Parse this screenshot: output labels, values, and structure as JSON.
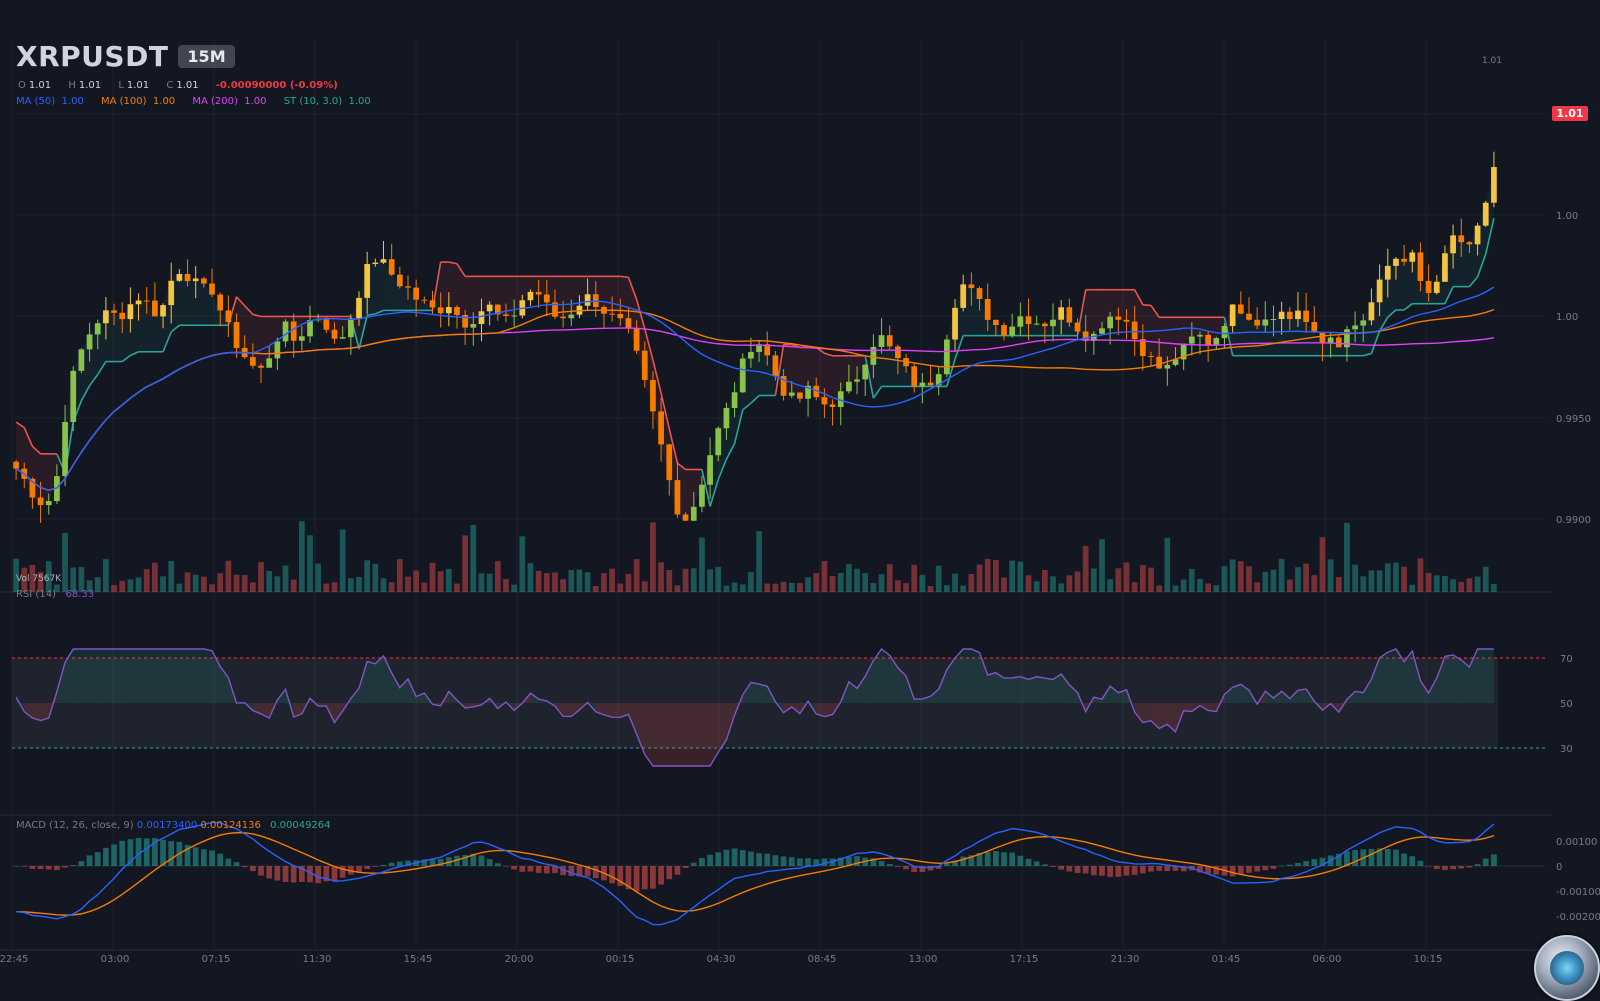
{
  "header": {
    "symbol": "XRPUSDT",
    "timeframe": "15M",
    "ohlc": {
      "o_label": "O",
      "o": "1.01",
      "h_label": "H",
      "h": "1.01",
      "l_label": "L",
      "l": "1.01",
      "c_label": "C",
      "c": "1.01"
    },
    "change": "-0.00090000 (-0.09%)",
    "ma50": {
      "label": "MA (50)",
      "value": "1.00",
      "color": "#2962ff"
    },
    "ma100": {
      "label": "MA (100)",
      "value": "1.00",
      "color": "#f57c00"
    },
    "ma200": {
      "label": "MA (200)",
      "value": "1.00",
      "color": "#e040fb"
    },
    "st": {
      "label": "ST (10, 3.0)",
      "value": "1.00",
      "color": "#26a69a"
    }
  },
  "price_panel": {
    "last_price_label": "1.01",
    "high_marker": "1.01",
    "volume_label": "Vol 7567K"
  },
  "rsi_panel": {
    "label": "RSI (14)",
    "value": "68.33",
    "color": "#7e57c2",
    "upper": 70,
    "lower": 30,
    "mid": 50
  },
  "macd_panel": {
    "label": "MACD (12, 26, close, 9)",
    "macd_value": "0.00173400",
    "signal_value": "0.00124136",
    "hist_value": "0.00049264"
  },
  "colors": {
    "bg": "#131722",
    "up_strong": "#f5c542",
    "down_strong": "#f57c00",
    "up_green": "#8bc34a",
    "ma50": "#2962ff",
    "ma100": "#f57c00",
    "ma200": "#e040fb",
    "st_up": "#26a69a",
    "st_down": "#ef5350",
    "rsi": "#7e57c2",
    "macd": "#2962ff",
    "signal": "#f57c00",
    "hist_up": "#26a69a",
    "hist_down": "#ef5350"
  },
  "chart_data": {
    "type": "candlestick",
    "symbol": "XRPUSDT",
    "timeframe": "15M",
    "x_ticks": [
      "22:45",
      "03:00",
      "07:15",
      "11:30",
      "15:45",
      "20:00",
      "00:15",
      "04:30",
      "08:45",
      "13:00",
      "17:15",
      "21:30",
      "01:45",
      "06:00",
      "10:15"
    ],
    "price_ticks": [
      "1.00",
      "1.00",
      "0.9950",
      "0.9900"
    ],
    "price_tick_values": [
      1.0,
      0.9975,
      0.995,
      0.99
    ],
    "price_range": [
      0.9875,
      1.0112
    ],
    "rsi_ticks": [
      "70",
      "50",
      "30"
    ],
    "macd_ticks": [
      "0.00100",
      "0",
      "-0.00100",
      "-0.00200"
    ],
    "macd_tick_values": [
      0.001,
      0,
      -0.001,
      -0.002
    ],
    "close_path": [
      0.9928,
      0.9922,
      0.9915,
      0.9912,
      0.9925,
      0.9958,
      0.9975,
      0.9985,
      0.9992,
      0.9995,
      0.9993,
      0.9998,
      1.0002,
      0.9998,
      0.9993,
      1.0008,
      1.0014,
      1.001,
      1.0004,
      1.0006,
      0.9995,
      0.9985,
      0.9978,
      0.9972,
      0.997,
      0.998,
      0.999,
      0.9983,
      0.9987,
      0.9994,
      0.9992,
      0.9982,
      0.9986,
      0.9998,
      1.0012,
      1.0018,
      1.0015,
      1.0009,
      1.0006,
      1.0001,
      0.9998,
      0.9995,
      1.0,
      0.9994,
      0.999,
      0.9995,
      0.9998,
      0.9993,
      0.999,
      0.9999,
      1.0004,
      1.0003,
      0.9995,
      0.9992,
      0.9995,
      1.0,
      1.0002,
      0.9997,
      0.9993,
      0.999,
      0.9983,
      0.9968,
      0.9952,
      0.9935,
      0.9916,
      0.9905,
      0.9912,
      0.9925,
      0.994,
      0.995,
      0.9962,
      0.9975,
      0.9985,
      0.9978,
      0.9968,
      0.996,
      0.9956,
      0.9962,
      0.9958,
      0.9955,
      0.9958,
      0.9962,
      0.9968,
      0.9978,
      0.9986,
      0.998,
      0.9974,
      0.9968,
      0.9962,
      0.9965,
      0.9972,
      0.9992,
      1.0008,
      1.0004,
      0.9998,
      0.9992,
      0.9987,
      0.999,
      0.9994,
      0.9992,
      0.999,
      0.9993,
      0.9996,
      0.9991,
      0.9986,
      0.9985,
      0.9992,
      0.9995,
      0.9993,
      0.9984,
      0.9978,
      0.9972,
      0.997,
      0.9976,
      0.998,
      0.9986,
      0.9982,
      0.9985,
      0.9994,
      0.9998,
      0.9995,
      0.9991,
      0.9994,
      0.9996,
      0.9992,
      0.9997,
      0.9988,
      0.998,
      0.9985,
      0.9982,
      0.9987,
      0.999,
      0.9996,
      1.001,
      1.0018,
      1.0012,
      1.0022,
      1.0006,
      1.0,
      1.0015,
      1.0028,
      1.0021,
      1.0025,
      1.0038,
      1.006
    ],
    "macd_path": [
      -0.0018,
      -0.002,
      -0.0021,
      -0.0019,
      -0.0012,
      -0.0004,
      0.0004,
      0.001,
      0.0014,
      0.0016,
      0.0018,
      0.0015,
      0.001,
      0.0004,
      0.0,
      -0.0004,
      -0.0006,
      -0.0005,
      -0.0003,
      -0.0001,
      0.0001,
      0.0003,
      0.0006,
      0.001,
      0.0008,
      0.0004,
      0.0002,
      0.0,
      -0.0003,
      -0.0006,
      -0.0012,
      -0.002,
      -0.0024,
      -0.0022,
      -0.0016,
      -0.001,
      -0.0005,
      -0.0003,
      -0.0002,
      -0.0001,
      0.0,
      0.0002,
      0.0005,
      0.0006,
      0.0003,
      0.0,
      -0.0001,
      0.0004,
      0.0009,
      0.0013,
      0.0015,
      0.0014,
      0.0011,
      0.0008,
      0.0005,
      0.0002,
      0.0001,
      0.0001,
      0.0,
      -0.0001,
      -0.0004,
      -0.0007,
      -0.0007,
      -0.0006,
      -0.0004,
      -0.0001,
      0.0003,
      0.0008,
      0.0012,
      0.0016,
      0.0015,
      0.001,
      0.0009,
      0.001,
      0.0017
    ]
  }
}
